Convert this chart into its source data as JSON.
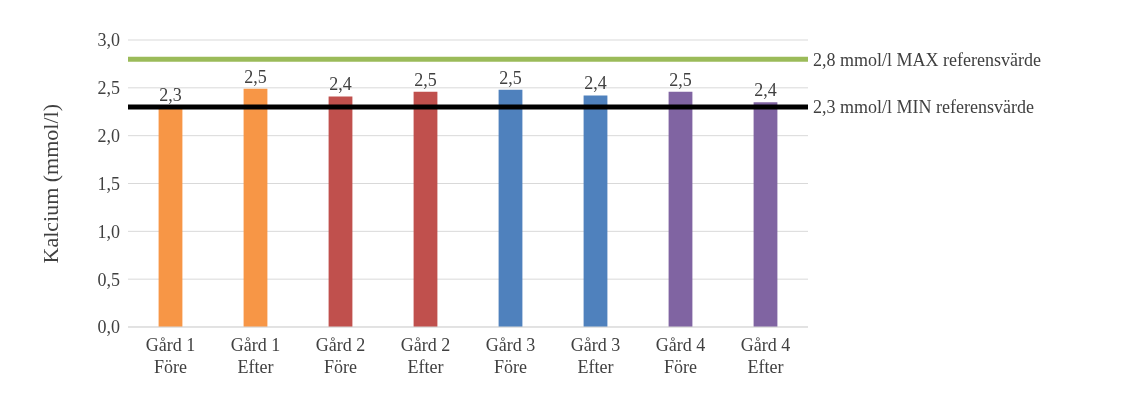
{
  "chart_data": {
    "type": "bar",
    "ylabel": "Kalcium (mmol/l)",
    "categories": [
      "Gård 1 Före",
      "Gård 1 Efter",
      "Gård 2 Före",
      "Gård 2 Efter",
      "Gård 3 Före",
      "Gård 3 Efter",
      "Gård 4 Före",
      "Gård 4 Efter"
    ],
    "values": [
      2.3,
      2.49,
      2.41,
      2.46,
      2.48,
      2.42,
      2.46,
      2.35
    ],
    "value_labels": [
      "2,3",
      "2,5",
      "2,4",
      "2,5",
      "2,5",
      "2,4",
      "2,5",
      "2,4"
    ],
    "colors": [
      "#f79646",
      "#f79646",
      "#c0504d",
      "#c0504d",
      "#4f81bd",
      "#4f81bd",
      "#8064a2",
      "#8064a2"
    ],
    "ylim": [
      0,
      3
    ],
    "yticks": [
      {
        "value": 0,
        "label": "0,0"
      },
      {
        "value": 0.5,
        "label": "0,5"
      },
      {
        "value": 1,
        "label": "1,0"
      },
      {
        "value": 1.5,
        "label": "1,5"
      },
      {
        "value": 2,
        "label": "2,0"
      },
      {
        "value": 2.5,
        "label": "2,5"
      },
      {
        "value": 3,
        "label": "3,0"
      }
    ],
    "grid": "y",
    "ref_lines": [
      {
        "axis": "y",
        "value": 2.8,
        "label": "2,8 mmol/l MAX referensvärde",
        "color": "#9bbb59"
      },
      {
        "axis": "y",
        "value": 2.3,
        "label": "2,3 mmol/l MIN referensvärde",
        "color": "#000000"
      }
    ]
  }
}
